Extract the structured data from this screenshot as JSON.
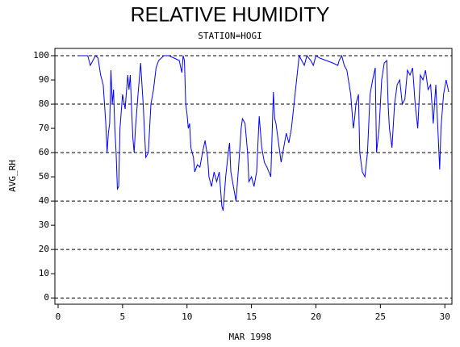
{
  "chart_data": {
    "type": "line",
    "title": "RELATIVE HUMIDITY",
    "subtitle": "STATION=HOGI",
    "x_label": "MAR 1998",
    "y_label": "AVG_RH",
    "xlim": [
      -0.25,
      30.55
    ],
    "ylim": [
      -2.6,
      103
    ],
    "xticks": [
      0,
      5,
      10,
      15,
      20,
      25,
      30
    ],
    "yticks": [
      0,
      10,
      20,
      30,
      40,
      50,
      60,
      70,
      80,
      90,
      100
    ],
    "grid_lines": [
      0,
      20,
      40,
      60,
      80,
      100
    ],
    "series": [
      {
        "name": "AVG_RH",
        "color": "#0000ff",
        "x": [
          1.6,
          2.3,
          2.5,
          2.7,
          2.9,
          3.1,
          3.3,
          3.5,
          3.6,
          3.7,
          3.8,
          3.9,
          4.0,
          4.1,
          4.2,
          4.3,
          4.4,
          4.5,
          4.6,
          4.7,
          4.8,
          5.0,
          5.2,
          5.4,
          5.5,
          5.6,
          5.7,
          5.8,
          5.9,
          6.0,
          6.2,
          6.4,
          6.6,
          6.8,
          7.0,
          7.2,
          7.4,
          7.6,
          7.8,
          8.2,
          8.6,
          9.0,
          9.4,
          9.6,
          9.7,
          9.8,
          9.9,
          10.0,
          10.1,
          10.2,
          10.3,
          10.5,
          10.6,
          10.8,
          11.0,
          11.2,
          11.4,
          11.6,
          11.7,
          11.9,
          12.1,
          12.3,
          12.5,
          12.7,
          12.8,
          13.0,
          13.2,
          13.3,
          13.4,
          13.6,
          13.8,
          14.0,
          14.2,
          14.3,
          14.5,
          14.7,
          14.8,
          15.0,
          15.2,
          15.4,
          15.6,
          15.8,
          16.0,
          16.2,
          16.5,
          16.7,
          16.8,
          16.9,
          17.1,
          17.3,
          17.5,
          17.7,
          17.9,
          18.1,
          18.3,
          18.5,
          18.7,
          18.9,
          19.1,
          19.3,
          19.6,
          19.8,
          20.0,
          20.3,
          20.8,
          21.3,
          21.7,
          21.8,
          22.0,
          22.2,
          22.4,
          22.7,
          22.9,
          23.0,
          23.1,
          23.3,
          23.4,
          23.6,
          23.8,
          24.0,
          24.2,
          24.4,
          24.6,
          24.7,
          24.9,
          25.1,
          25.3,
          25.5,
          25.6,
          25.7,
          25.9,
          26.1,
          26.3,
          26.5,
          26.7,
          26.9,
          27.1,
          27.3,
          27.5,
          27.7,
          27.9,
          28.1,
          28.3,
          28.5,
          28.7,
          28.9,
          29.1,
          29.3,
          29.5,
          29.6,
          29.7,
          29.9,
          30.1,
          30.3
        ],
        "values": [
          100,
          100,
          96,
          98,
          100,
          99,
          92,
          88,
          80,
          72,
          60,
          68,
          72,
          94,
          80,
          86,
          70,
          60,
          45,
          46,
          70,
          84,
          78,
          92,
          86,
          92,
          78,
          66,
          60,
          70,
          84,
          97,
          80,
          58,
          60,
          80,
          86,
          95,
          98,
          100,
          100,
          99,
          98,
          93,
          100,
          98,
          80,
          76,
          70,
          72,
          62,
          58,
          52,
          55,
          54,
          60,
          65,
          58,
          50,
          46,
          52,
          48,
          52,
          38,
          36,
          50,
          60,
          64,
          52,
          46,
          40,
          54,
          70,
          74,
          72,
          60,
          48,
          50,
          46,
          52,
          75,
          62,
          56,
          54,
          50,
          85,
          74,
          72,
          64,
          56,
          62,
          68,
          64,
          70,
          80,
          90,
          100,
          98,
          96,
          100,
          98,
          96,
          100,
          99,
          98,
          97,
          96,
          98,
          100,
          96,
          94,
          84,
          70,
          74,
          80,
          84,
          60,
          52,
          50,
          60,
          84,
          90,
          95,
          60,
          70,
          90,
          97,
          98,
          80,
          70,
          62,
          80,
          88,
          90,
          80,
          82,
          94,
          92,
          95,
          80,
          70,
          92,
          90,
          94,
          86,
          88,
          72,
          88,
          65,
          53,
          70,
          84,
          90,
          85
        ]
      }
    ]
  }
}
